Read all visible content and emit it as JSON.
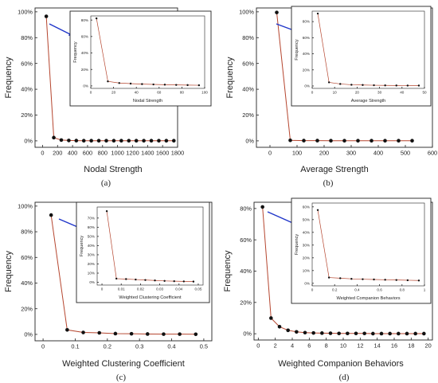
{
  "colors": {
    "line": "#b5452e",
    "marker": "#111111",
    "arrow": "#1f35c9",
    "axis": "#222222",
    "text": "#222222"
  },
  "chart_data": [
    {
      "type": "line",
      "panel_label": "(a)",
      "xlabel": "Nodal Strength",
      "ylabel": "Frequency",
      "xlim": [
        -100,
        1800
      ],
      "ylim": [
        -0.05,
        1.03
      ],
      "xticks": [
        0,
        200,
        400,
        600,
        800,
        1000,
        1200,
        1400,
        1600,
        1800
      ],
      "yticks": [
        0,
        0.2,
        0.4,
        0.6,
        0.8,
        1.0
      ],
      "ytick_labels": [
        "0%",
        "20%",
        "40%",
        "60%",
        "80%",
        "100%"
      ],
      "x": [
        50,
        150,
        250,
        350,
        450,
        550,
        650,
        750,
        850,
        950,
        1050,
        1150,
        1250,
        1350,
        1450,
        1550,
        1650,
        1750
      ],
      "y": [
        0.965,
        0.025,
        0.006,
        0.003,
        0.002,
        0.001,
        0.001,
        0.001,
        0.001,
        0.001,
        0.001,
        0.001,
        0.001,
        0.001,
        0.001,
        0.001,
        0.001,
        0.001
      ],
      "inset": {
        "xlabel": "Nodal Strength",
        "ylabel": "Frequency",
        "xlim": [
          0,
          100
        ],
        "ylim": [
          -0.03,
          0.85
        ],
        "xticks": [
          0,
          20,
          40,
          60,
          80,
          100
        ],
        "yticks": [
          0,
          0.2,
          0.4,
          0.6,
          0.8
        ],
        "ytick_labels": [
          "0%",
          "20%",
          "40%",
          "60%",
          "80%"
        ],
        "x": [
          5,
          15,
          25,
          35,
          45,
          55,
          65,
          75,
          85,
          95
        ],
        "y": [
          0.82,
          0.055,
          0.035,
          0.028,
          0.022,
          0.018,
          0.015,
          0.012,
          0.01,
          0.008
        ]
      }
    },
    {
      "type": "line",
      "panel_label": "(b)",
      "xlabel": "Average Strength",
      "ylabel": "Frequency",
      "xlim": [
        -50,
        600
      ],
      "ylim": [
        -0.05,
        1.03
      ],
      "xticks": [
        0,
        100,
        200,
        300,
        400,
        500,
        600
      ],
      "yticks": [
        0,
        0.2,
        0.4,
        0.6,
        0.8,
        1.0
      ],
      "ytick_labels": [
        "0%",
        "20%",
        "40%",
        "60%",
        "80%",
        "100%"
      ],
      "x": [
        25,
        75,
        125,
        175,
        225,
        275,
        325,
        375,
        425,
        475,
        525
      ],
      "y": [
        0.995,
        0.004,
        0.002,
        0.002,
        0.001,
        0.001,
        0.001,
        0.001,
        0.001,
        0.001,
        0.001
      ],
      "inset": {
        "xlabel": "Average Strength",
        "ylabel": "Frequency",
        "xlim": [
          0,
          50
        ],
        "ylim": [
          -0.03,
          0.93
        ],
        "xticks": [
          0,
          10,
          20,
          30,
          40,
          50
        ],
        "yticks": [
          0,
          0.2,
          0.4,
          0.6,
          0.8
        ],
        "ytick_labels": [
          "0%",
          "20%",
          "40%",
          "60%",
          "80%"
        ],
        "x": [
          2.5,
          7.5,
          12.5,
          17.5,
          22.5,
          27.5,
          32.5,
          37.5,
          42.5,
          47.5
        ],
        "y": [
          0.9,
          0.045,
          0.025,
          0.015,
          0.012,
          0.009,
          0.007,
          0.006,
          0.005,
          0.005
        ]
      }
    },
    {
      "type": "line",
      "panel_label": "(c)",
      "xlabel": "Weighted Clustering Coefficient",
      "ylabel": "Frequency",
      "xlim": [
        -0.025,
        0.525
      ],
      "ylim": [
        -0.05,
        1.03
      ],
      "xticks": [
        0,
        0.1,
        0.2,
        0.3,
        0.4,
        0.5
      ],
      "yticks": [
        0,
        0.2,
        0.4,
        0.6,
        0.8,
        1.0
      ],
      "ytick_labels": [
        "0%",
        "20%",
        "40%",
        "60%",
        "80%",
        "100%"
      ],
      "x": [
        0.025,
        0.075,
        0.125,
        0.175,
        0.225,
        0.275,
        0.325,
        0.375,
        0.425,
        0.475
      ],
      "y": [
        0.93,
        0.035,
        0.015,
        0.012,
        0.006,
        0.005,
        0.003,
        0.002,
        0.002,
        0.001
      ],
      "inset": {
        "xlabel": "Weighted Clustering Coefficient",
        "ylabel": "Frequency",
        "xlim": [
          -0.0025,
          0.0525
        ],
        "ylim": [
          -0.03,
          0.82
        ],
        "xticks": [
          0,
          0.01,
          0.02,
          0.03,
          0.04,
          0.05
        ],
        "yticks": [
          0,
          0.1,
          0.2,
          0.3,
          0.4,
          0.5,
          0.6,
          0.7
        ],
        "ytick_labels": [
          "0%",
          "10%",
          "20%",
          "30%",
          "40%",
          "50%",
          "60%",
          "70%"
        ],
        "x": [
          0.0025,
          0.0075,
          0.0125,
          0.0175,
          0.0225,
          0.0275,
          0.0325,
          0.0375,
          0.0425,
          0.0475
        ],
        "y": [
          0.775,
          0.04,
          0.035,
          0.03,
          0.025,
          0.02,
          0.015,
          0.012,
          0.01,
          0.008
        ]
      }
    },
    {
      "type": "line",
      "panel_label": "(d)",
      "xlabel": "Weighted Companion Behaviors",
      "ylabel": "Frequency",
      "xlim": [
        -0.5,
        20.5
      ],
      "ylim": [
        -0.04,
        0.84
      ],
      "xticks": [
        0,
        2,
        4,
        6,
        8,
        10,
        12,
        14,
        16,
        18,
        20
      ],
      "yticks": [
        0,
        0.2,
        0.4,
        0.6,
        0.8
      ],
      "ytick_labels": [
        "0%",
        "20%",
        "40%",
        "60%",
        "80%"
      ],
      "x": [
        0.5,
        1.5,
        2.5,
        3.5,
        4.5,
        5.5,
        6.5,
        7.5,
        8.5,
        9.5,
        10.5,
        11.5,
        12.5,
        13.5,
        14.5,
        15.5,
        16.5,
        17.5,
        18.5,
        19.5
      ],
      "y": [
        0.81,
        0.1,
        0.045,
        0.022,
        0.012,
        0.007,
        0.005,
        0.004,
        0.003,
        0.002,
        0.002,
        0.002,
        0.002,
        0.001,
        0.001,
        0.001,
        0.001,
        0.001,
        0.001,
        0.001
      ],
      "inset": {
        "xlabel": "Weighted Companion Behaviors",
        "ylabel": "Frequency",
        "xlim": [
          0,
          1.0
        ],
        "ylim": [
          -0.02,
          0.63
        ],
        "xticks": [
          0,
          0.2,
          0.4,
          0.6,
          0.8,
          1.0
        ],
        "yticks": [
          0,
          0.1,
          0.2,
          0.3,
          0.4,
          0.5,
          0.6
        ],
        "ytick_labels": [
          "0%",
          "10%",
          "20%",
          "30%",
          "40%",
          "50%",
          "60%"
        ],
        "x": [
          0.05,
          0.15,
          0.25,
          0.35,
          0.45,
          0.55,
          0.65,
          0.75,
          0.85,
          0.95
        ],
        "y": [
          0.575,
          0.045,
          0.04,
          0.035,
          0.032,
          0.03,
          0.028,
          0.026,
          0.024,
          0.022
        ]
      }
    }
  ]
}
